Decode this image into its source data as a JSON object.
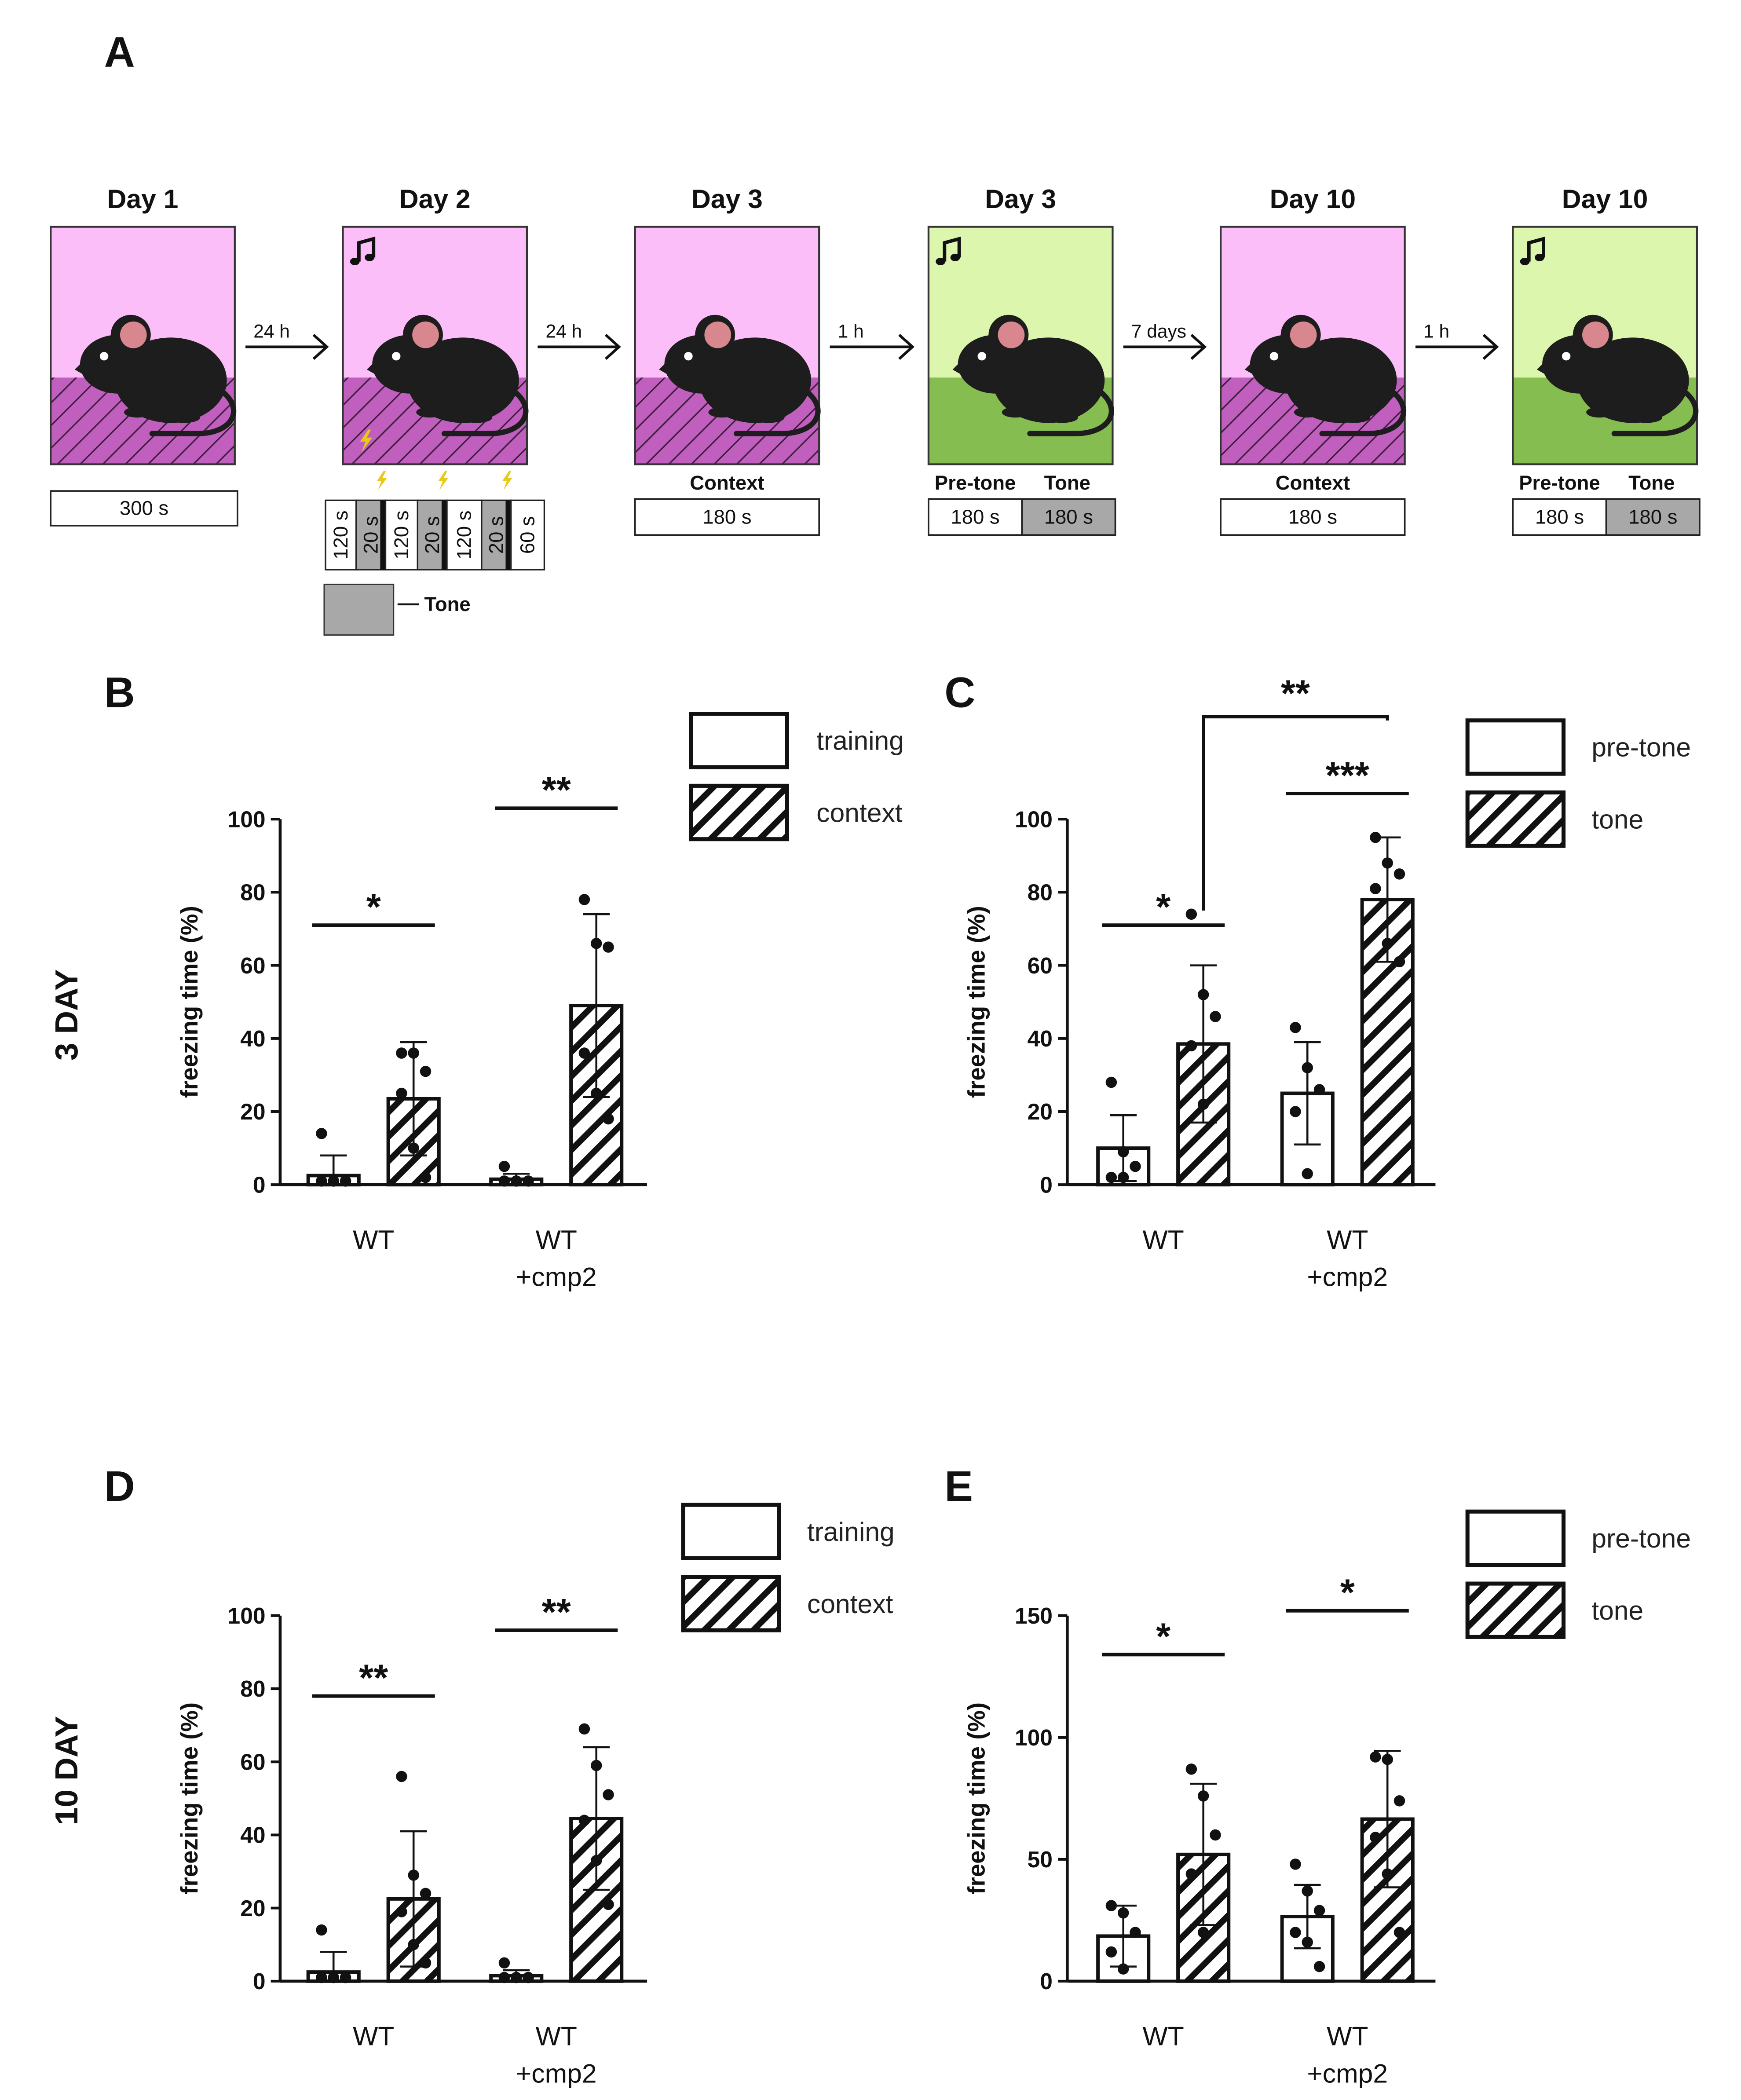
{
  "colors": {
    "context_pink": "#fbbef9",
    "context_floor": "#c15fbf",
    "tone_green": "#dcf7ad",
    "tone_floor": "#86bd50",
    "tone_gray": "#a8a8a8",
    "mouse": "#1d1d1d",
    "mouse_ear": "#d9878f",
    "shock": "#e8c81a"
  },
  "panel_a": {
    "letter": "A",
    "chambers": [
      {
        "title": "Day 1",
        "type": "context",
        "note": true,
        "music": false
      },
      {
        "title": "Day 2",
        "type": "context",
        "music": true,
        "shock": true
      },
      {
        "title": "Day 3",
        "type": "context",
        "music": false
      },
      {
        "title": "Day 3",
        "type": "tone",
        "music": true
      },
      {
        "title": "Day 10",
        "type": "context",
        "music": false
      },
      {
        "title": "Day 10",
        "type": "tone",
        "music": true
      }
    ],
    "arrows": [
      "24 h",
      "24 h",
      "1 h",
      "7 days",
      "1 h"
    ],
    "day1_box": "300 s",
    "day2_segments": [
      {
        "label": "120 s",
        "tone": false
      },
      {
        "label": "20 s",
        "tone": true
      },
      {
        "label": "120 s",
        "tone": false
      },
      {
        "label": "20 s",
        "tone": true
      },
      {
        "label": "120 s",
        "tone": false
      },
      {
        "label": "20 s",
        "tone": true
      },
      {
        "label": "60 s",
        "tone": false
      }
    ],
    "tone_legend": "Tone",
    "context_label": "Context",
    "context_box": "180 s",
    "pretone_label": "Pre-tone",
    "tone_label": "Tone",
    "pretone_box": "180 s",
    "tone_box": "180 s"
  },
  "row_labels": [
    "3 DAY",
    "10 DAY"
  ],
  "chart_data": [
    {
      "panel": "B",
      "type": "bar",
      "ylabel": "freezing time (%)",
      "ylim": [
        0,
        100
      ],
      "yticks": [
        0,
        20,
        40,
        60,
        80,
        100
      ],
      "categories": [
        "WT",
        "WT\n+cmp2"
      ],
      "category_labels": [
        [
          "WT"
        ],
        [
          "WT",
          "+cmp2"
        ]
      ],
      "series": [
        {
          "name": "training",
          "pattern": "open",
          "values": [
            2.5,
            1.5
          ],
          "sd": [
            5.5,
            1.5
          ],
          "points": [
            [
              14,
              1,
              1,
              1,
              1,
              1
            ],
            [
              5,
              1,
              1,
              1,
              1,
              1
            ]
          ]
        },
        {
          "name": "context",
          "pattern": "hatched",
          "values": [
            23.5,
            49
          ],
          "sd": [
            15.5,
            25
          ],
          "points": [
            [
              36,
              36,
              31,
              25,
              10,
              2
            ],
            [
              78,
              66,
              65,
              36,
              25,
              18
            ]
          ]
        }
      ],
      "significance": [
        {
          "category": 0,
          "label": "*",
          "y": 71
        },
        {
          "category": 1,
          "label": "**",
          "y": 103
        }
      ]
    },
    {
      "panel": "C",
      "type": "bar",
      "ylabel": "freezing time (%)",
      "ylim": [
        0,
        100
      ],
      "yticks": [
        0,
        20,
        40,
        60,
        80,
        100
      ],
      "categories": [
        "WT",
        "WT\n+cmp2"
      ],
      "category_labels": [
        [
          "WT"
        ],
        [
          "WT",
          "+cmp2"
        ]
      ],
      "series": [
        {
          "name": "pre-tone",
          "pattern": "open",
          "values": [
            10,
            25
          ],
          "sd": [
            9,
            14
          ],
          "points": [
            [
              28,
              9,
              5,
              2,
              2
            ],
            [
              43,
              32,
              26,
              20,
              3
            ]
          ]
        },
        {
          "name": "tone",
          "pattern": "hatched",
          "values": [
            38.5,
            78
          ],
          "sd": [
            21.5,
            17
          ],
          "points": [
            [
              74,
              52,
              46,
              38,
              22
            ],
            [
              95,
              88,
              85,
              81,
              66,
              61
            ]
          ]
        }
      ],
      "significance": [
        {
          "category": 0,
          "label": "*",
          "y": 71
        },
        {
          "category": 1,
          "label": "***",
          "y": 107
        },
        {
          "category": "between",
          "label": "**",
          "y": 128
        }
      ]
    },
    {
      "panel": "D",
      "type": "bar",
      "ylabel": "freezing time (%)",
      "ylim": [
        0,
        100
      ],
      "yticks": [
        0,
        20,
        40,
        60,
        80,
        100
      ],
      "categories": [
        "WT",
        "WT\n+cmp2"
      ],
      "category_labels": [
        [
          "WT"
        ],
        [
          "WT",
          "+cmp2"
        ]
      ],
      "series": [
        {
          "name": "training",
          "pattern": "open",
          "values": [
            2.5,
            1.5
          ],
          "sd": [
            5.5,
            1.5
          ],
          "points": [
            [
              14,
              1,
              1,
              1,
              1,
              1
            ],
            [
              5,
              1,
              1,
              1,
              1,
              1
            ]
          ]
        },
        {
          "name": "context",
          "pattern": "hatched",
          "values": [
            22.5,
            44.5
          ],
          "sd": [
            18.5,
            19.5
          ],
          "points": [
            [
              56,
              29,
              24,
              19,
              10,
              5
            ],
            [
              69,
              59,
              51,
              44,
              33,
              21
            ]
          ]
        }
      ],
      "significance": [
        {
          "category": 0,
          "label": "**",
          "y": 78
        },
        {
          "category": 1,
          "label": "**",
          "y": 96
        }
      ]
    },
    {
      "panel": "E",
      "type": "bar",
      "ylabel": "freezing time (%)",
      "ylim": [
        0,
        150
      ],
      "yticks": [
        0,
        50,
        100,
        150
      ],
      "categories": [
        "WT",
        "WT\n+cmp2"
      ],
      "category_labels": [
        [
          "WT"
        ],
        [
          "WT",
          "+cmp2"
        ]
      ],
      "series": [
        {
          "name": "pre-tone",
          "pattern": "open",
          "values": [
            18.5,
            26.5
          ],
          "sd": [
            12.5,
            13
          ],
          "points": [
            [
              31,
              28,
              20,
              12,
              5
            ],
            [
              48,
              37,
              29,
              20,
              16,
              6
            ]
          ]
        },
        {
          "name": "tone",
          "pattern": "hatched",
          "values": [
            52,
            66.5
          ],
          "sd": [
            29,
            28
          ],
          "points": [
            [
              87,
              76,
              60,
              44,
              20
            ],
            [
              92,
              91,
              74,
              59,
              44,
              20
            ]
          ]
        }
      ],
      "significance": [
        {
          "category": 0,
          "label": "*",
          "y": 134
        },
        {
          "category": 1,
          "label": "*",
          "y": 152
        }
      ]
    }
  ]
}
